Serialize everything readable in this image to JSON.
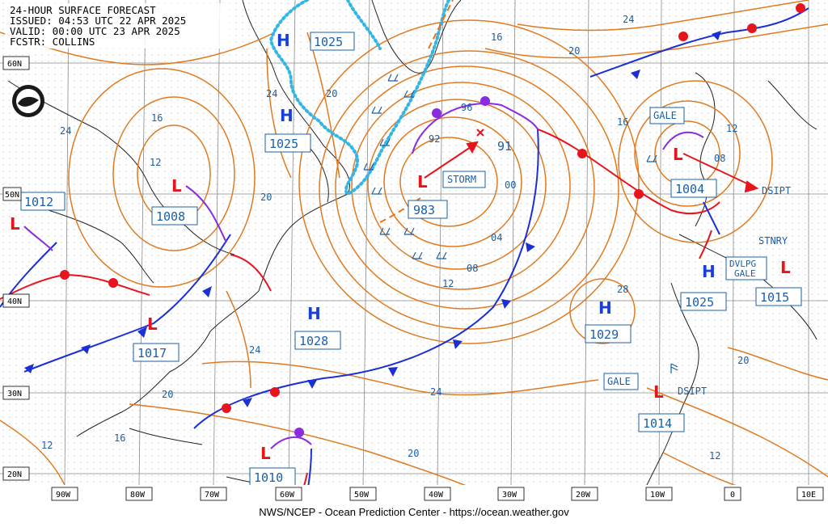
{
  "header": {
    "title": "24-HOUR SURFACE FORECAST",
    "issued": "ISSUED: 04:53 UTC 22 APR 2025",
    "valid": "VALID:  00:00 UTC 23 APR 2025",
    "forecaster": "FCSTR:  COLLINS"
  },
  "footer": "NWS/NCEP - Ocean Prediction Center - https://ocean.weather.gov",
  "longitude_labels": [
    "90W",
    "80W",
    "70W",
    "60W",
    "50W",
    "40W",
    "30W",
    "20W",
    "10W",
    "0",
    "10E"
  ],
  "latitude_labels": [
    "60N",
    "50N",
    "40N",
    "30N",
    "20N"
  ],
  "pressure_centers": [
    {
      "type": "H",
      "value": "1025"
    },
    {
      "type": "H",
      "value": "1025"
    },
    {
      "type": "L",
      "value": "1012"
    },
    {
      "type": "L",
      "value": "1008"
    },
    {
      "type": "L",
      "value": "983",
      "tag": "STORM"
    },
    {
      "type": "L",
      "value": "1004",
      "tag": "GALE"
    },
    {
      "type": "L",
      "value": "1017"
    },
    {
      "type": "H",
      "value": "1028"
    },
    {
      "type": "H",
      "value": "1029"
    },
    {
      "type": "H",
      "value": "1025"
    },
    {
      "type": "L",
      "value": "1015",
      "tag": "DVLPG GALE"
    },
    {
      "type": "L",
      "value": "1014",
      "tag": "GALE"
    },
    {
      "type": "L",
      "value": "1010"
    }
  ],
  "annotations": [
    "DSIPT",
    "STNRY",
    "DSIPT",
    "91"
  ],
  "isobar_labels": [
    "24",
    "20",
    "16",
    "24",
    "16",
    "12",
    "20",
    "20",
    "24",
    "92",
    "96",
    "00",
    "04",
    "08",
    "12",
    "16",
    "12",
    "08",
    "28",
    "20",
    "24",
    "24",
    "20",
    "16",
    "12",
    "20",
    "12"
  ],
  "colors": {
    "isobar": "#e07a1f",
    "cold_front": "#1a2fd6",
    "warm_front": "#e8141d",
    "occluded": "#8a2be2",
    "ice_edge": "#33b5e5",
    "label": "#1a5fa8"
  }
}
